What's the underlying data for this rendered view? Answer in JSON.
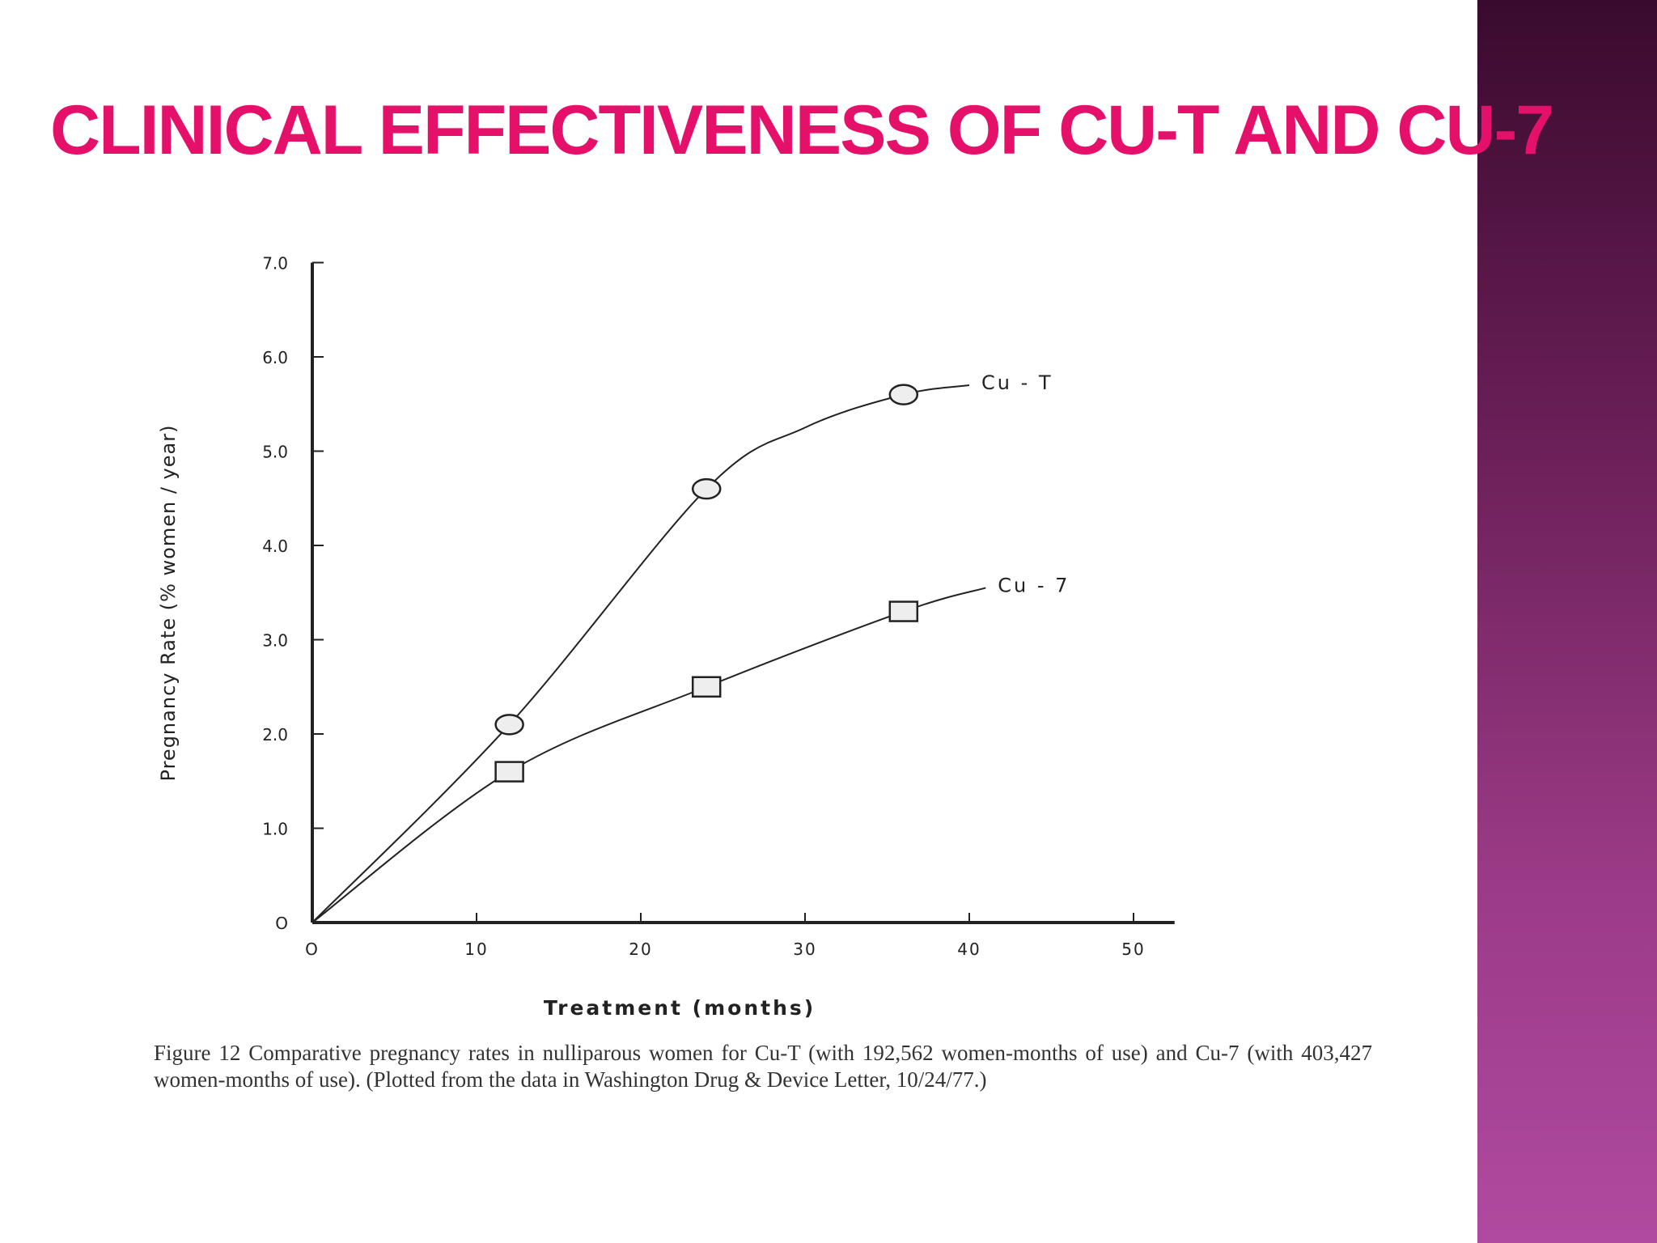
{
  "slide": {
    "title": "CLINICAL EFFECTIVENESS OF CU-T AND CU-7",
    "accent_color": "#e5106a",
    "sidebar_colors": [
      "#3a0a2e",
      "#b04aa0"
    ]
  },
  "figure": {
    "caption": "Figure 12   Comparative pregnancy rates in nulliparous women for Cu-T (with 192,562 women-months of use) and Cu-7 (with 403,427 women-months of use). (Plotted from the data in Washington Drug & Device Letter, 10/24/77.)"
  },
  "chart_data": {
    "type": "line",
    "title": "",
    "xlabel": "Treatment  (months)",
    "ylabel": "Pregnancy Rate  (% women / year)",
    "xlim": [
      0,
      52
    ],
    "ylim": [
      0,
      7.0
    ],
    "x_ticks": [
      0,
      10,
      20,
      30,
      40,
      50
    ],
    "x_tick_labels": [
      "O",
      "10",
      "20",
      "30",
      "40",
      "50"
    ],
    "y_ticks": [
      0,
      1,
      2,
      3,
      4,
      5,
      6,
      7
    ],
    "y_tick_labels": [
      "O",
      "1.0",
      "2.0",
      "3.0",
      "4.0",
      "5.0",
      "6.0",
      "7.0"
    ],
    "series": [
      {
        "name": "Cu-T",
        "label": "Cu - T",
        "marker": "circle",
        "points": [
          {
            "x": 12,
            "y": 2.1
          },
          {
            "x": 24,
            "y": 4.6
          },
          {
            "x": 36,
            "y": 5.6
          }
        ],
        "curve": [
          [
            0,
            0
          ],
          [
            12,
            2.1
          ],
          [
            24,
            4.6
          ],
          [
            30,
            5.25
          ],
          [
            36,
            5.6
          ],
          [
            40,
            5.7
          ]
        ]
      },
      {
        "name": "Cu-7",
        "label": "Cu - 7",
        "marker": "square",
        "points": [
          {
            "x": 12,
            "y": 1.6
          },
          {
            "x": 24,
            "y": 2.5
          },
          {
            "x": 36,
            "y": 3.3
          }
        ],
        "curve": [
          [
            0,
            0
          ],
          [
            12,
            1.6
          ],
          [
            24,
            2.5
          ],
          [
            36,
            3.3
          ],
          [
            41,
            3.55
          ]
        ]
      }
    ]
  }
}
